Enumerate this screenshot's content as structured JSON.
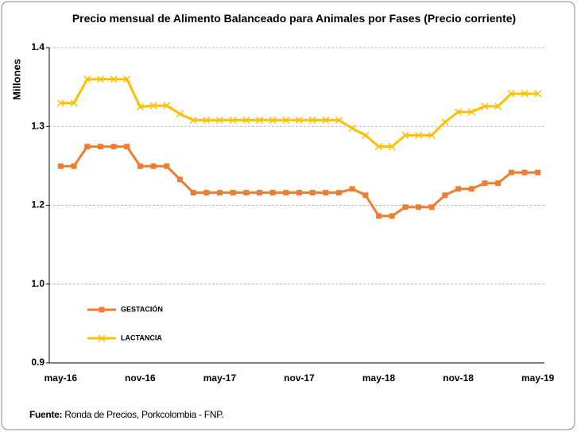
{
  "chart_data": {
    "type": "line",
    "title": "Precio mensual de Alimento Balanceado para Animales por Fases (Precio corriente)",
    "y_label": "Millones",
    "categories": [
      "may-16",
      null,
      null,
      null,
      null,
      null,
      "nov-16",
      null,
      null,
      null,
      null,
      null,
      "may-17",
      null,
      null,
      null,
      null,
      null,
      "nov-17",
      null,
      null,
      null,
      null,
      null,
      "may-18",
      null,
      null,
      null,
      null,
      null,
      "nov-18",
      null,
      null,
      null,
      null,
      null,
      "may-19"
    ],
    "series": [
      {
        "name": "GESTACIÓN",
        "color": "#ED7D31",
        "marker": "square",
        "values": [
          1.212,
          1.212,
          1.243,
          1.243,
          1.243,
          1.243,
          1.212,
          1.212,
          1.212,
          1.191,
          1.17,
          1.17,
          1.17,
          1.17,
          1.17,
          1.17,
          1.17,
          1.17,
          1.17,
          1.17,
          1.17,
          1.17,
          1.176,
          1.166,
          1.133,
          1.133,
          1.147,
          1.147,
          1.147,
          1.166,
          1.176,
          1.176,
          1.185,
          1.185,
          1.202,
          1.202,
          1.202
        ]
      },
      {
        "name": "LACTANCIA",
        "color": "#FFC000",
        "marker": "x",
        "values": [
          1.312,
          1.312,
          1.35,
          1.35,
          1.35,
          1.35,
          1.306,
          1.308,
          1.308,
          1.295,
          1.285,
          1.285,
          1.285,
          1.285,
          1.285,
          1.285,
          1.285,
          1.285,
          1.285,
          1.285,
          1.285,
          1.285,
          1.272,
          1.261,
          1.243,
          1.243,
          1.261,
          1.261,
          1.261,
          1.282,
          1.298,
          1.298,
          1.307,
          1.307,
          1.327,
          1.327,
          1.327
        ]
      }
    ],
    "ylim": [
      0.9,
      1.4
    ],
    "yticks": [
      0.9,
      {
        "value": 1.025,
        "label": "1.0"
      },
      {
        "value": 1.15,
        "label": "1.2"
      },
      {
        "value": 1.275,
        "label": "1.3"
      },
      1.4
    ],
    "grid": true,
    "legend": "lower-left",
    "source": {
      "label": "Fuente:",
      "text": "Ronda de Precios, Porkcolombia  - FNP."
    }
  }
}
